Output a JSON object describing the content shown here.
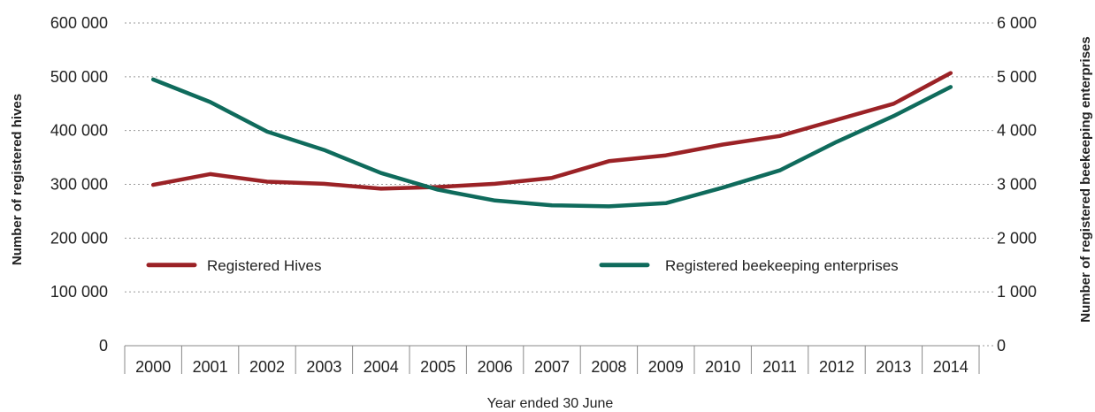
{
  "chart_data": {
    "type": "line",
    "xlabel": "Year ended 30 June",
    "ylabel_left": "Number of registered  hives",
    "ylabel_right": "Number of registered beekeeping enterprises",
    "categories": [
      "2000",
      "2001",
      "2002",
      "2003",
      "2004",
      "2005",
      "2006",
      "2007",
      "2008",
      "2009",
      "2010",
      "2011",
      "2012",
      "2013",
      "2014"
    ],
    "y_left": {
      "min": 0,
      "max": 600000,
      "ticks": [
        0,
        100000,
        200000,
        300000,
        400000,
        500000,
        600000
      ],
      "tick_labels": [
        "0",
        "100 000",
        "200 000",
        "300 000",
        "400 000",
        "500 000",
        "600 000"
      ]
    },
    "y_right": {
      "min": 0,
      "max": 6000,
      "ticks": [
        0,
        1000,
        2000,
        3000,
        4000,
        5000,
        6000
      ],
      "tick_labels": [
        "0",
        "1 000",
        "2 000",
        "3 000",
        "4 000",
        "5 000",
        "6 000"
      ]
    },
    "grid": "horizontal dotted",
    "series": [
      {
        "name": "Registered Hives",
        "axis": "left",
        "color": "#9b2226",
        "values": [
          299000,
          319000,
          305000,
          301000,
          292000,
          295000,
          301000,
          312000,
          343000,
          354000,
          374000,
          390000,
          420000,
          450000,
          507000
        ]
      },
      {
        "name": "Registered beekeeping enterprises",
        "axis": "right",
        "color": "#0f6b5c",
        "values": [
          4950,
          4530,
          3980,
          3640,
          3210,
          2900,
          2700,
          2610,
          2590,
          2650,
          2940,
          3260,
          3790,
          4270,
          4810
        ]
      }
    ],
    "legend": [
      "Registered Hives",
      "Registered beekeeping enterprises"
    ]
  }
}
